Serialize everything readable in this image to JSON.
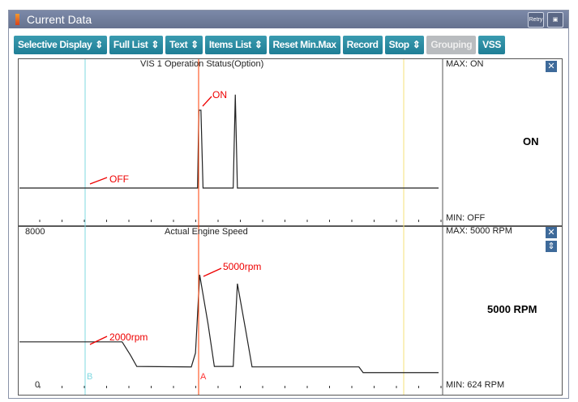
{
  "window": {
    "title": "Current Data",
    "retry_label": "Retry"
  },
  "toolbar": [
    {
      "label": "Selective Display",
      "arrow": "⇕"
    },
    {
      "label": "Full List",
      "arrow": "⇕"
    },
    {
      "label": "Text",
      "arrow": "⇕"
    },
    {
      "label": "Items List",
      "arrow": "⇕"
    },
    {
      "label": "Reset Min.Max",
      "arrow": ""
    },
    {
      "label": "Record",
      "arrow": ""
    },
    {
      "label": "Stop",
      "arrow": "⇕"
    },
    {
      "label": "Grouping",
      "arrow": "",
      "disabled": true
    },
    {
      "label": "VSS",
      "arrow": ""
    }
  ],
  "panel1": {
    "title": "VIS 1 Operation Status(Option)",
    "max": "MAX: ON",
    "min": "MIN: OFF",
    "value": "ON",
    "annotations": {
      "on": "ON",
      "off": "OFF"
    },
    "series": [
      [
        0,
        0
      ],
      [
        42.5,
        0
      ],
      [
        42.8,
        1
      ],
      [
        43.3,
        1
      ],
      [
        43.8,
        0
      ],
      [
        51,
        0
      ],
      [
        51.5,
        1.2
      ],
      [
        52,
        0
      ],
      [
        100,
        0
      ]
    ]
  },
  "panel2": {
    "title": "Actual Engine Speed",
    "ymax_label": "8000",
    "ymin_label": "0",
    "max": "MAX:  5000 RPM",
    "min": "MIN:   624 RPM",
    "value": "5000 RPM",
    "annotations": {
      "peak": "5000rpm",
      "base": "2000rpm"
    },
    "series": [
      [
        0,
        2000
      ],
      [
        24.5,
        2000
      ],
      [
        26.5,
        1400
      ],
      [
        28,
        900
      ],
      [
        41,
        880
      ],
      [
        42,
        1500
      ],
      [
        43,
        5000
      ],
      [
        45,
        2800
      ],
      [
        46.5,
        900
      ],
      [
        51,
        900
      ],
      [
        52,
        4600
      ],
      [
        54,
        2500
      ],
      [
        55.5,
        880
      ],
      [
        81,
        880
      ],
      [
        82,
        624
      ],
      [
        100,
        624
      ]
    ]
  },
  "cursors": {
    "a": "A",
    "b": "B"
  },
  "colors": {
    "cursorA": "#ff3b00",
    "cursorB": "#7fd8e0",
    "cursorY": "#f5e27a"
  }
}
